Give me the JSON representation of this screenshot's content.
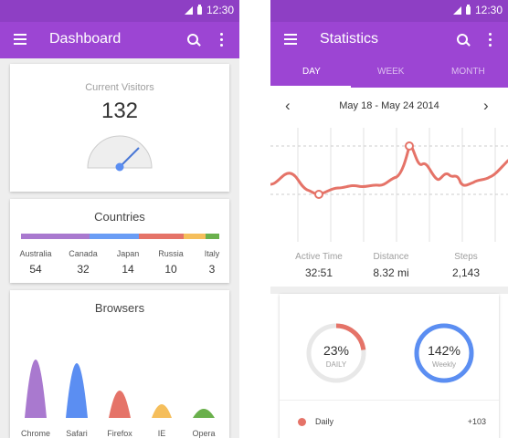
{
  "status_bar": {
    "time": "12:30"
  },
  "dashboard": {
    "title": "Dashboard",
    "visitors": {
      "label": "Current Visitors",
      "value": "132"
    },
    "countries": {
      "title": "Countries",
      "items": [
        {
          "name": "Australia",
          "value": "54",
          "color": "#a979cf"
        },
        {
          "name": "Canada",
          "value": "32",
          "color": "#6a9df5"
        },
        {
          "name": "Japan",
          "value": "14",
          "color": "#6a9df5"
        },
        {
          "name": "Russia",
          "value": "10",
          "color": "#e57368"
        },
        {
          "name": "Italy",
          "value": "3",
          "color": "#f5be5b"
        }
      ]
    },
    "browsers": {
      "title": "Browsers",
      "items": [
        {
          "name": "Chrome",
          "color": "#a979cf"
        },
        {
          "name": "Safari",
          "color": "#5b8ef2"
        },
        {
          "name": "Firefox",
          "color": "#e57368"
        },
        {
          "name": "IE",
          "color": "#f5be5b"
        },
        {
          "name": "Opera",
          "color": "#6ab04c"
        }
      ]
    }
  },
  "statistics": {
    "title": "Statistics",
    "tabs": [
      {
        "label": "DAY"
      },
      {
        "label": "WEEK"
      },
      {
        "label": "MONTH"
      }
    ],
    "date_range": "May 18 - May 24 2014",
    "stats": [
      {
        "label": "Active Time",
        "value": "32:51"
      },
      {
        "label": "Distance",
        "value": "8.32 mi"
      },
      {
        "label": "Steps",
        "value": "2,143"
      }
    ],
    "rings": [
      {
        "percent": "23%",
        "label": "DAILY",
        "color": "#e57368",
        "fraction": 0.23
      },
      {
        "percent": "142%",
        "label": "Weekly",
        "color": "#5b8ef2",
        "fraction": 1.0
      }
    ],
    "legend": {
      "label": "Daily",
      "value": "+103",
      "color": "#e57368"
    }
  }
}
